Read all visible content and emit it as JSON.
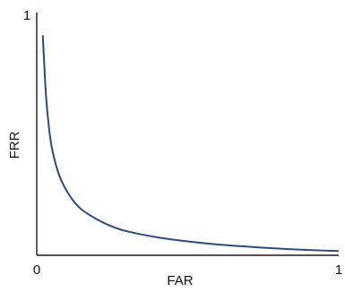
{
  "chart_data": {
    "type": "line",
    "title": "",
    "xlabel": "FAR",
    "ylabel": "FRR",
    "xlim": [
      0,
      1
    ],
    "ylim": [
      0,
      1
    ],
    "x_ticks": [
      "0",
      "1"
    ],
    "y_ticks": [
      "1"
    ],
    "grid": false,
    "series": [
      {
        "color": "#2b4a7e",
        "x": [
          0.02,
          0.03,
          0.04,
          0.05,
          0.07,
          0.09,
          0.12,
          0.15,
          0.2,
          0.25,
          0.3,
          0.4,
          0.5,
          0.6,
          0.7,
          0.8,
          0.9,
          1.0
        ],
        "y": [
          0.92,
          0.68,
          0.54,
          0.45,
          0.35,
          0.29,
          0.23,
          0.19,
          0.15,
          0.12,
          0.1,
          0.075,
          0.058,
          0.045,
          0.036,
          0.028,
          0.022,
          0.018
        ]
      }
    ]
  }
}
